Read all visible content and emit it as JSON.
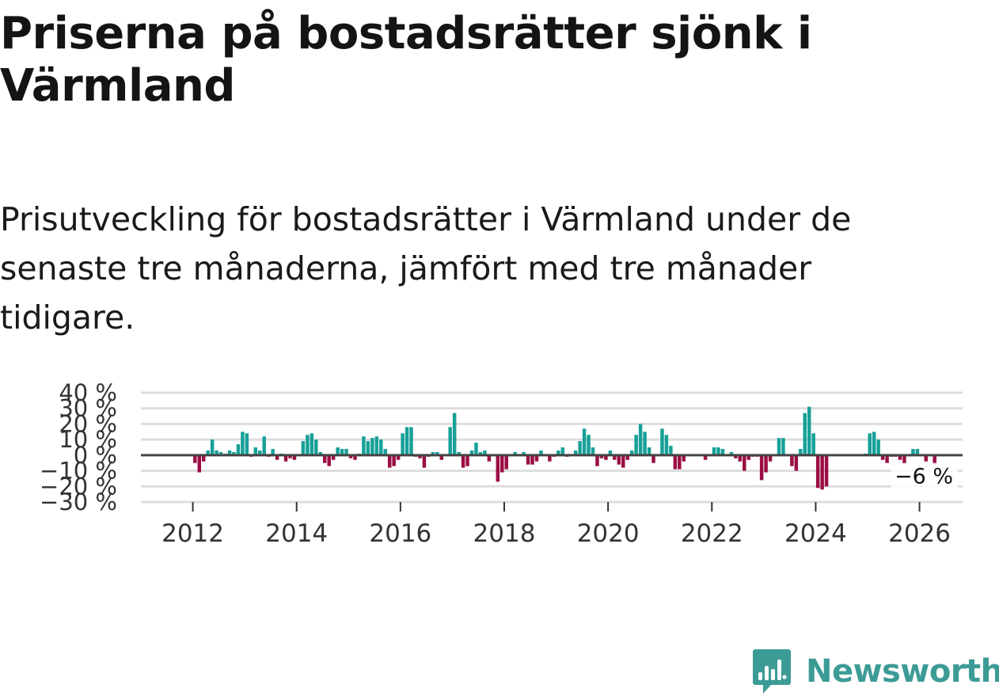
{
  "header": {
    "title": "Priserna på bostadsrätter sjönk i Värmland",
    "subtitle": "Prisutveckling för bostadsrätter i Värmland under de senaste tre månaderna, jämfört med tre månader tidigare."
  },
  "brand": {
    "name": "Newsworthy",
    "color": "#3d9b96"
  },
  "colors": {
    "positive": "#17a098",
    "negative": "#9b0e45",
    "grid": "#dddddd",
    "zero": "#444444"
  },
  "chart_data": {
    "type": "bar",
    "title": "Priserna på bostadsrätter sjönk i Värmland",
    "xlabel": "",
    "ylabel": "",
    "ylim": [
      -30,
      40
    ],
    "yticks": [
      40,
      30,
      20,
      10,
      0,
      -10,
      -20,
      -30
    ],
    "ytick_labels": [
      "40 %",
      "30 %",
      "20 %",
      "10 %",
      "0 %",
      "−10 %",
      "−20 %",
      "−30 %"
    ],
    "xticks": [
      2012,
      2014,
      2016,
      2018,
      2020,
      2022,
      2024,
      2026
    ],
    "x_start": 2011.0,
    "x_end": 2026.83,
    "start_year": 2011,
    "start_month": 1,
    "last_value_label": "−6 %",
    "units": "%",
    "values": [
      0,
      0,
      0,
      0,
      0,
      0,
      0,
      0,
      0,
      0,
      0,
      0,
      -5,
      -11,
      -4,
      3,
      10,
      3,
      2,
      1,
      3,
      2,
      7,
      15,
      14,
      -1,
      5,
      3,
      12,
      -1,
      4,
      -3,
      1,
      -4,
      -2,
      -3,
      0,
      9,
      13,
      14,
      10,
      2,
      -5,
      -7,
      -3,
      5,
      4,
      4,
      -2,
      -3,
      1,
      12,
      9,
      11,
      12,
      10,
      4,
      -8,
      -7,
      -3,
      14,
      18,
      18,
      -1,
      -2,
      -8,
      -1,
      2,
      2,
      -3,
      0,
      18,
      27,
      2,
      -8,
      -7,
      3,
      8,
      2,
      3,
      -4,
      0,
      -17,
      -11,
      -9,
      0,
      2,
      0,
      2,
      -6,
      -6,
      -4,
      3,
      0,
      -4,
      -1,
      3,
      5,
      -1,
      0,
      3,
      9,
      17,
      13,
      5,
      -7,
      -2,
      -3,
      3,
      -3,
      -6,
      -8,
      -3,
      3,
      13,
      20,
      15,
      5,
      -5,
      0,
      17,
      13,
      6,
      -9,
      -9,
      -4,
      0,
      0,
      0,
      0,
      -3,
      0,
      5,
      5,
      4,
      0,
      2,
      -2,
      -4,
      -10,
      -3,
      -1,
      -1,
      -16,
      -11,
      -4,
      0,
      11,
      11,
      0,
      -7,
      -10,
      4,
      27,
      31,
      14,
      -21,
      -22,
      -20,
      0,
      0,
      0,
      0,
      0,
      0,
      0,
      0,
      1,
      14,
      15,
      10,
      -3,
      -5,
      -1,
      -1,
      -3,
      -6,
      0,
      4,
      4,
      0,
      -4,
      0,
      -6
    ]
  }
}
